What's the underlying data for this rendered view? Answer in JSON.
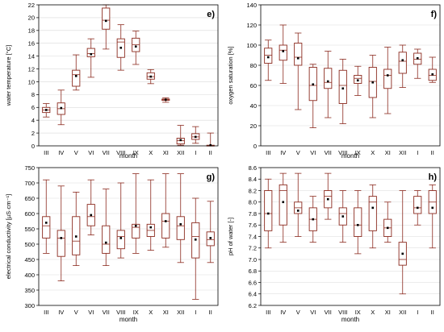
{
  "style": {
    "box_color": "#8b2a1e",
    "mean_color": "#000000",
    "axis_color": "#000000",
    "grid_color": "#d9d9d9"
  },
  "chart_data": [
    {
      "type": "box",
      "panel_label": "e)",
      "xlabel": "month",
      "ylabel": "water temperature [°C]",
      "ylim": [
        0,
        22
      ],
      "yticks": [
        0,
        2,
        4,
        6,
        8,
        10,
        12,
        14,
        16,
        18,
        20,
        22
      ],
      "categories": [
        "III",
        "IV",
        "V",
        "VI",
        "VII",
        "VIII",
        "IX",
        "X",
        "XI",
        "XII",
        "I",
        "II"
      ],
      "boxes": [
        {
          "min": 4.5,
          "q1": 5.2,
          "median": 5.6,
          "q3": 6.0,
          "max": 6.6,
          "mean": 5.6
        },
        {
          "min": 3.3,
          "q1": 4.9,
          "median": 5.8,
          "q3": 6.7,
          "max": 8.7,
          "mean": 5.9
        },
        {
          "min": 8.7,
          "q1": 9.3,
          "median": 11.1,
          "q3": 11.8,
          "max": 14.2,
          "mean": 10.9
        },
        {
          "min": 10.7,
          "q1": 13.9,
          "median": 14.4,
          "q3": 15.2,
          "max": 16.7,
          "mean": 14.3
        },
        {
          "min": 15.1,
          "q1": 18.2,
          "median": 19.6,
          "q3": 21.5,
          "max": 22.0,
          "mean": 19.5
        },
        {
          "min": 11.8,
          "q1": 13.8,
          "median": 16.2,
          "q3": 16.7,
          "max": 18.9,
          "mean": 15.3
        },
        {
          "min": 12.7,
          "q1": 14.7,
          "median": 15.8,
          "q3": 16.8,
          "max": 17.9,
          "mean": 15.5
        },
        {
          "min": 9.7,
          "q1": 10.4,
          "median": 10.8,
          "q3": 11.4,
          "max": 11.9,
          "mean": 10.8
        },
        {
          "min": 6.8,
          "q1": 7.1,
          "median": 7.2,
          "q3": 7.3,
          "max": 7.5,
          "mean": 7.2
        },
        {
          "min": 0.1,
          "q1": 0.3,
          "median": 0.8,
          "q3": 1.2,
          "max": 3.2,
          "mean": 0.9
        },
        {
          "min": 0.4,
          "q1": 1.0,
          "median": 1.4,
          "q3": 1.9,
          "max": 3.0,
          "mean": 1.4
        },
        {
          "min": 0.0,
          "q1": 0.0,
          "median": 0.0,
          "q3": 0.1,
          "max": 2.0,
          "mean": 0.1
        }
      ]
    },
    {
      "type": "box",
      "panel_label": "f)",
      "xlabel": "month",
      "ylabel": "oxygen saturation [%]",
      "ylim": [
        0,
        140
      ],
      "yticks": [
        0,
        20,
        40,
        60,
        80,
        100,
        120,
        140
      ],
      "categories": [
        "III",
        "IV",
        "V",
        "VI",
        "VII",
        "VIII",
        "IX",
        "X",
        "XI",
        "XII",
        "I",
        "II"
      ],
      "boxes": [
        {
          "min": 65,
          "q1": 82,
          "median": 90,
          "q3": 97,
          "max": 105,
          "mean": 88
        },
        {
          "min": 62,
          "q1": 85,
          "median": 95,
          "q3": 100,
          "max": 120,
          "mean": 94
        },
        {
          "min": 36,
          "q1": 80,
          "median": 88,
          "q3": 102,
          "max": 112,
          "mean": 87
        },
        {
          "min": 18,
          "q1": 45,
          "median": 60,
          "q3": 78,
          "max": 81,
          "mean": 61
        },
        {
          "min": 28,
          "q1": 57,
          "median": 63,
          "q3": 77,
          "max": 94,
          "mean": 64
        },
        {
          "min": 22,
          "q1": 42,
          "median": 60,
          "q3": 75,
          "max": 86,
          "mean": 57
        },
        {
          "min": 50,
          "q1": 62,
          "median": 67,
          "q3": 70,
          "max": 79,
          "mean": 65
        },
        {
          "min": 28,
          "q1": 48,
          "median": 64,
          "q3": 78,
          "max": 90,
          "mean": 63
        },
        {
          "min": 32,
          "q1": 57,
          "median": 70,
          "q3": 76,
          "max": 98,
          "mean": 70
        },
        {
          "min": 58,
          "q1": 72,
          "median": 84,
          "q3": 93,
          "max": 100,
          "mean": 85
        },
        {
          "min": 67,
          "q1": 81,
          "median": 86,
          "q3": 92,
          "max": 96,
          "mean": 87
        },
        {
          "min": 63,
          "q1": 65,
          "median": 70,
          "q3": 76,
          "max": 88,
          "mean": 71
        }
      ]
    },
    {
      "type": "box",
      "panel_label": "g)",
      "xlabel": "month",
      "ylabel": "electrical conductivity [µS·cm⁻¹]",
      "ylim": [
        300,
        750
      ],
      "yticks": [
        300,
        350,
        400,
        450,
        500,
        550,
        600,
        650,
        700,
        750
      ],
      "categories": [
        "III",
        "IV",
        "V",
        "VI",
        "VII",
        "VIII",
        "IX",
        "X",
        "XI",
        "XII",
        "I",
        "II"
      ],
      "boxes": [
        {
          "min": 470,
          "q1": 520,
          "median": 560,
          "q3": 590,
          "max": 710,
          "mean": 570
        },
        {
          "min": 380,
          "q1": 460,
          "median": 520,
          "q3": 545,
          "max": 690,
          "mean": 520
        },
        {
          "min": 430,
          "q1": 465,
          "median": 510,
          "q3": 590,
          "max": 670,
          "mean": 525
        },
        {
          "min": 530,
          "q1": 560,
          "median": 590,
          "q3": 630,
          "max": 710,
          "mean": 595
        },
        {
          "min": 430,
          "q1": 470,
          "median": 500,
          "q3": 560,
          "max": 680,
          "mean": 505
        },
        {
          "min": 455,
          "q1": 485,
          "median": 525,
          "q3": 545,
          "max": 700,
          "mean": 520
        },
        {
          "min": 470,
          "q1": 520,
          "median": 555,
          "q3": 565,
          "max": 730,
          "mean": 560
        },
        {
          "min": 480,
          "q1": 525,
          "median": 545,
          "q3": 565,
          "max": 710,
          "mean": 555
        },
        {
          "min": 490,
          "q1": 520,
          "median": 575,
          "q3": 600,
          "max": 730,
          "mean": 575
        },
        {
          "min": 440,
          "q1": 515,
          "median": 560,
          "q3": 590,
          "max": 730,
          "mean": 565
        },
        {
          "min": 320,
          "q1": 455,
          "median": 525,
          "q3": 570,
          "max": 650,
          "mean": 515
        },
        {
          "min": 440,
          "q1": 495,
          "median": 515,
          "q3": 540,
          "max": 640,
          "mean": 520
        }
      ]
    },
    {
      "type": "box",
      "panel_label": "h)",
      "xlabel": "month",
      "ylabel": "pH of water [-]",
      "ylim": [
        6.2,
        8.6
      ],
      "yticks": [
        6.2,
        6.4,
        6.6,
        6.8,
        7.0,
        7.2,
        7.4,
        7.6,
        7.8,
        8.0,
        8.2,
        8.4,
        8.6
      ],
      "categories": [
        "III",
        "IV",
        "V",
        "VI",
        "VII",
        "VIII",
        "IX",
        "X",
        "XI",
        "XII",
        "I",
        "II"
      ],
      "boxes": [
        {
          "min": 7.2,
          "q1": 7.5,
          "median": 7.8,
          "q3": 8.2,
          "max": 8.4,
          "mean": 7.8
        },
        {
          "min": 7.3,
          "q1": 7.6,
          "median": 8.2,
          "q3": 8.3,
          "max": 8.5,
          "mean": 8.0
        },
        {
          "min": 7.4,
          "q1": 7.8,
          "median": 7.9,
          "q3": 8.0,
          "max": 8.5,
          "mean": 7.85
        },
        {
          "min": 7.3,
          "q1": 7.5,
          "median": 7.7,
          "q3": 7.9,
          "max": 8.1,
          "mean": 7.7
        },
        {
          "min": 7.7,
          "q1": 7.9,
          "median": 8.1,
          "q3": 8.2,
          "max": 8.5,
          "mean": 8.05
        },
        {
          "min": 7.3,
          "q1": 7.6,
          "median": 7.8,
          "q3": 7.9,
          "max": 8.2,
          "mean": 7.75
        },
        {
          "min": 7.1,
          "q1": 7.4,
          "median": 7.6,
          "q3": 7.9,
          "max": 8.2,
          "mean": 7.6
        },
        {
          "min": 7.2,
          "q1": 7.5,
          "median": 8.0,
          "q3": 8.1,
          "max": 8.3,
          "mean": 7.9
        },
        {
          "min": 7.3,
          "q1": 7.4,
          "median": 7.55,
          "q3": 7.7,
          "max": 8.0,
          "mean": 7.55
        },
        {
          "min": 6.4,
          "q1": 6.9,
          "median": 7.0,
          "q3": 7.3,
          "max": 8.2,
          "mean": 7.1
        },
        {
          "min": 7.6,
          "q1": 7.8,
          "median": 7.9,
          "q3": 8.1,
          "max": 8.2,
          "mean": 7.9
        },
        {
          "min": 7.2,
          "q1": 7.8,
          "median": 8.0,
          "q3": 8.2,
          "max": 8.3,
          "mean": 7.9
        }
      ]
    }
  ]
}
